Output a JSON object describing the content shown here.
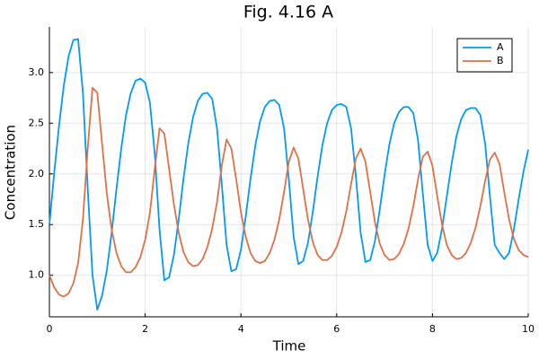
{
  "chart_data": {
    "type": "line",
    "title": "Fig. 4.16 A",
    "x_label": "Time",
    "y_label": "Concentration",
    "x": [
      0,
      0.1,
      0.2,
      0.3,
      0.4,
      0.5,
      0.6,
      0.7,
      0.8,
      0.9,
      1,
      1.1,
      1.2,
      1.3,
      1.4,
      1.5,
      1.6,
      1.7,
      1.8,
      1.9,
      2,
      2.1,
      2.2,
      2.3,
      2.4,
      2.5,
      2.6,
      2.7,
      2.8,
      2.9,
      3,
      3.1,
      3.2,
      3.3,
      3.4,
      3.5,
      3.6,
      3.7,
      3.8,
      3.9,
      4,
      4.1,
      4.2,
      4.3,
      4.4,
      4.5,
      4.6,
      4.7,
      4.8,
      4.9,
      5,
      5.1,
      5.2,
      5.3,
      5.4,
      5.5,
      5.6,
      5.7,
      5.8,
      5.9,
      6,
      6.1,
      6.2,
      6.3,
      6.4,
      6.5,
      6.6,
      6.7,
      6.8,
      6.9,
      7,
      7.1,
      7.2,
      7.3,
      7.4,
      7.5,
      7.6,
      7.7,
      7.8,
      7.9,
      8,
      8.1,
      8.2,
      8.3,
      8.4,
      8.5,
      8.6,
      8.7,
      8.8,
      8.9,
      9,
      9.1,
      9.2,
      9.3,
      9.4,
      9.5,
      9.6,
      9.7,
      9.8,
      9.9,
      10
    ],
    "series": [
      {
        "name": "A",
        "color": "#009af9",
        "values": [
          1.5,
          2.01,
          2.47,
          2.87,
          3.16,
          3.32,
          3.33,
          2.8,
          1.86,
          1.0,
          0.66,
          0.8,
          1.05,
          1.42,
          1.85,
          2.25,
          2.58,
          2.8,
          2.92,
          2.94,
          2.9,
          2.7,
          2.2,
          1.45,
          0.95,
          0.98,
          1.2,
          1.55,
          1.95,
          2.3,
          2.56,
          2.72,
          2.79,
          2.8,
          2.74,
          2.45,
          1.9,
          1.3,
          1.04,
          1.06,
          1.25,
          1.58,
          1.95,
          2.28,
          2.52,
          2.66,
          2.72,
          2.73,
          2.68,
          2.45,
          1.95,
          1.38,
          1.11,
          1.14,
          1.32,
          1.62,
          1.97,
          2.28,
          2.5,
          2.63,
          2.68,
          2.69,
          2.66,
          2.45,
          1.98,
          1.42,
          1.13,
          1.15,
          1.34,
          1.65,
          1.99,
          2.29,
          2.5,
          2.61,
          2.66,
          2.66,
          2.6,
          2.33,
          1.8,
          1.3,
          1.14,
          1.22,
          1.46,
          1.78,
          2.1,
          2.37,
          2.54,
          2.63,
          2.65,
          2.65,
          2.58,
          2.3,
          1.78,
          1.3,
          1.22,
          1.16,
          1.22,
          1.45,
          1.75,
          2.02,
          2.24
        ]
      },
      {
        "name": "B",
        "color": "#e26f46",
        "values": [
          1.0,
          0.88,
          0.81,
          0.79,
          0.82,
          0.92,
          1.12,
          1.55,
          2.25,
          2.85,
          2.8,
          2.3,
          1.8,
          1.45,
          1.22,
          1.09,
          1.03,
          1.03,
          1.08,
          1.18,
          1.35,
          1.62,
          2.05,
          2.45,
          2.4,
          2.05,
          1.7,
          1.42,
          1.23,
          1.13,
          1.09,
          1.1,
          1.16,
          1.28,
          1.46,
          1.72,
          2.08,
          2.34,
          2.25,
          1.95,
          1.62,
          1.38,
          1.22,
          1.14,
          1.12,
          1.14,
          1.22,
          1.35,
          1.55,
          1.82,
          2.12,
          2.26,
          2.15,
          1.85,
          1.55,
          1.33,
          1.2,
          1.15,
          1.15,
          1.19,
          1.28,
          1.42,
          1.63,
          1.9,
          2.15,
          2.25,
          2.12,
          1.82,
          1.52,
          1.31,
          1.2,
          1.15,
          1.16,
          1.21,
          1.31,
          1.46,
          1.68,
          1.95,
          2.17,
          2.22,
          2.08,
          1.78,
          1.5,
          1.3,
          1.2,
          1.16,
          1.17,
          1.22,
          1.32,
          1.47,
          1.68,
          1.93,
          2.14,
          2.21,
          2.1,
          1.82,
          1.55,
          1.36,
          1.25,
          1.2,
          1.18
        ]
      }
    ],
    "xlim": [
      0,
      10
    ],
    "xticks": [
      0,
      2,
      4,
      6,
      8,
      10
    ],
    "ylim": [
      0.59,
      3.45
    ],
    "yticks": [
      {
        "value": 1.0,
        "label": "1.0"
      },
      1.5,
      {
        "value": 2.0,
        "label": "2.0"
      },
      2.5,
      {
        "value": 3.0,
        "label": "3.0"
      }
    ],
    "grid": true,
    "legend_position": "top-right"
  }
}
